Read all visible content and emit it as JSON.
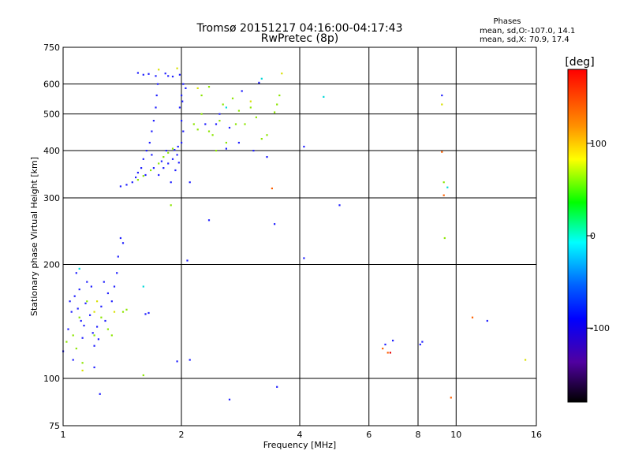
{
  "chart_data": {
    "type": "scatter",
    "title": "Tromsø 20151217 04:16:00-04:17:43",
    "subtitle": "RwPretec (8p)",
    "phases": {
      "heading": "Phases",
      "line1": "mean, sd,O:-107.0, 14.1",
      "line2": "mean, sd,X:  70.9, 17.4"
    },
    "xlabel": "Frequency [MHz]",
    "ylabel": "Stationary phase Virtual Height [km]",
    "xscale": "log",
    "yscale": "log",
    "xlim": [
      1,
      16
    ],
    "ylim": [
      75,
      750
    ],
    "xticks": [
      1,
      2,
      4,
      6,
      8,
      10,
      16
    ],
    "xtick_labels": [
      "1",
      "2",
      "4",
      "6",
      "8",
      "10",
      "16"
    ],
    "yticks": [
      75,
      100,
      200,
      300,
      400,
      500,
      600,
      750
    ],
    "ytick_labels": [
      "75",
      "100",
      "200",
      "300",
      "400",
      "500",
      "600",
      "750"
    ],
    "grid": true,
    "colorbar": {
      "label": "[deg]",
      "range": [
        -180,
        180
      ],
      "ticks": [
        100,
        0,
        -100
      ],
      "tick_labels": [
        "100",
        "0",
        "-100"
      ]
    },
    "series": [
      {
        "color": "#2020ff",
        "points": [
          [
            1.0,
            118
          ],
          [
            1.03,
            135
          ],
          [
            1.05,
            150
          ],
          [
            1.07,
            165
          ],
          [
            1.08,
            190
          ],
          [
            1.1,
            172
          ],
          [
            1.11,
            142
          ],
          [
            1.12,
            128
          ],
          [
            1.14,
            158
          ],
          [
            1.15,
            180
          ],
          [
            1.17,
            147
          ],
          [
            1.19,
            132
          ],
          [
            1.2,
            122
          ],
          [
            1.22,
            137
          ],
          [
            1.25,
            155
          ],
          [
            1.28,
            142
          ],
          [
            1.3,
            168
          ],
          [
            1.33,
            160
          ],
          [
            1.35,
            175
          ],
          [
            1.37,
            190
          ],
          [
            1.38,
            210
          ],
          [
            1.4,
            235
          ],
          [
            1.42,
            228
          ],
          [
            1.04,
            160
          ],
          [
            1.09,
            153
          ],
          [
            1.13,
            138
          ],
          [
            1.18,
            175
          ],
          [
            1.23,
            127
          ],
          [
            1.27,
            180
          ],
          [
            1.06,
            112
          ],
          [
            1.2,
            107
          ],
          [
            1.24,
            91
          ],
          [
            1.4,
            322
          ],
          [
            1.45,
            325
          ],
          [
            1.5,
            330
          ],
          [
            1.53,
            340
          ],
          [
            1.55,
            350
          ],
          [
            1.58,
            360
          ],
          [
            1.6,
            380
          ],
          [
            1.63,
            400
          ],
          [
            1.66,
            420
          ],
          [
            1.68,
            450
          ],
          [
            1.7,
            480
          ],
          [
            1.72,
            520
          ],
          [
            1.73,
            560
          ],
          [
            1.74,
            600
          ],
          [
            1.72,
            630
          ],
          [
            1.65,
            638
          ],
          [
            1.6,
            635
          ],
          [
            1.55,
            642
          ],
          [
            1.75,
            345
          ],
          [
            1.8,
            360
          ],
          [
            1.85,
            370
          ],
          [
            1.9,
            380
          ],
          [
            1.95,
            390
          ],
          [
            2.0,
            420
          ],
          [
            2.02,
            450
          ],
          [
            2.0,
            480
          ],
          [
            1.98,
            520
          ],
          [
            2.0,
            560
          ],
          [
            2.02,
            600
          ],
          [
            1.98,
            635
          ],
          [
            1.9,
            628
          ],
          [
            1.85,
            630
          ],
          [
            1.82,
            640
          ],
          [
            1.88,
            330
          ],
          [
            1.93,
            355
          ],
          [
            1.97,
            372
          ],
          [
            1.83,
            400
          ],
          [
            1.78,
            375
          ],
          [
            1.7,
            360
          ],
          [
            1.62,
            345
          ],
          [
            1.68,
            390
          ],
          [
            1.92,
            402
          ],
          [
            1.96,
            410
          ],
          [
            2.01,
            540
          ],
          [
            2.05,
            585
          ],
          [
            1.62,
            148
          ],
          [
            1.65,
            149
          ],
          [
            1.95,
            111
          ],
          [
            2.1,
            112
          ],
          [
            2.07,
            205
          ],
          [
            2.1,
            330
          ],
          [
            2.35,
            262
          ],
          [
            2.65,
            88
          ],
          [
            3.3,
            385
          ],
          [
            3.45,
            256
          ],
          [
            3.5,
            95
          ],
          [
            4.1,
            208
          ],
          [
            4.1,
            410
          ],
          [
            5.05,
            287
          ],
          [
            6.9,
            126
          ],
          [
            6.6,
            123
          ],
          [
            8.1,
            123
          ],
          [
            8.2,
            125
          ],
          [
            9.2,
            560
          ],
          [
            12.0,
            142
          ],
          [
            2.3,
            470
          ],
          [
            2.5,
            500
          ],
          [
            2.65,
            460
          ],
          [
            2.8,
            420
          ],
          [
            2.85,
            575
          ],
          [
            3.05,
            400
          ],
          [
            3.15,
            605
          ],
          [
            2.6,
            405
          ],
          [
            2.45,
            470
          ]
        ]
      },
      {
        "color": "#8ce600",
        "points": [
          [
            1.02,
            125
          ],
          [
            1.06,
            130
          ],
          [
            1.1,
            145
          ],
          [
            1.15,
            160
          ],
          [
            1.2,
            130
          ],
          [
            1.25,
            145
          ],
          [
            1.3,
            135
          ],
          [
            1.33,
            130
          ],
          [
            1.42,
            150
          ],
          [
            1.45,
            152
          ],
          [
            1.12,
            110
          ],
          [
            1.08,
            120
          ],
          [
            1.55,
            335
          ],
          [
            1.6,
            343
          ],
          [
            1.67,
            355
          ],
          [
            1.75,
            370
          ],
          [
            1.8,
            385
          ],
          [
            1.85,
            395
          ],
          [
            1.9,
            405
          ],
          [
            2.15,
            470
          ],
          [
            2.25,
            500
          ],
          [
            2.35,
            450
          ],
          [
            2.4,
            440
          ],
          [
            2.5,
            480
          ],
          [
            2.6,
            420
          ],
          [
            2.75,
            470
          ],
          [
            2.8,
            510
          ],
          [
            2.9,
            470
          ],
          [
            3.0,
            520
          ],
          [
            3.1,
            490
          ],
          [
            3.2,
            430
          ],
          [
            3.3,
            440
          ],
          [
            3.45,
            505
          ],
          [
            3.5,
            530
          ],
          [
            3.55,
            560
          ],
          [
            2.55,
            530
          ],
          [
            2.7,
            550
          ],
          [
            1.88,
            287
          ],
          [
            1.6,
            102
          ],
          [
            9.3,
            330
          ],
          [
            9.35,
            235
          ],
          [
            2.25,
            560
          ],
          [
            2.35,
            590
          ],
          [
            2.2,
            455
          ],
          [
            2.45,
            400
          ]
        ]
      },
      {
        "color": "#d8e000",
        "points": [
          [
            1.12,
            105
          ],
          [
            1.22,
            160
          ],
          [
            1.35,
            150
          ],
          [
            1.2,
            150
          ],
          [
            1.75,
            655
          ],
          [
            3.6,
            640
          ],
          [
            3.0,
            540
          ],
          [
            2.2,
            585
          ],
          [
            9.2,
            530
          ],
          [
            15.0,
            112
          ],
          [
            1.95,
            660
          ]
        ]
      },
      {
        "color": "#00d8d8",
        "points": [
          [
            4.6,
            555
          ],
          [
            1.6,
            175
          ],
          [
            1.1,
            195
          ],
          [
            9.5,
            320
          ],
          [
            3.2,
            620
          ],
          [
            2.6,
            520
          ]
        ]
      },
      {
        "color": "#ff6000",
        "points": [
          [
            6.5,
            120
          ],
          [
            6.7,
            117
          ],
          [
            9.2,
            397
          ],
          [
            9.3,
            305
          ],
          [
            9.7,
            89
          ],
          [
            11.0,
            145
          ],
          [
            3.4,
            318
          ]
        ]
      },
      {
        "color": "#e80000",
        "points": [
          [
            6.8,
            117
          ]
        ]
      }
    ]
  }
}
